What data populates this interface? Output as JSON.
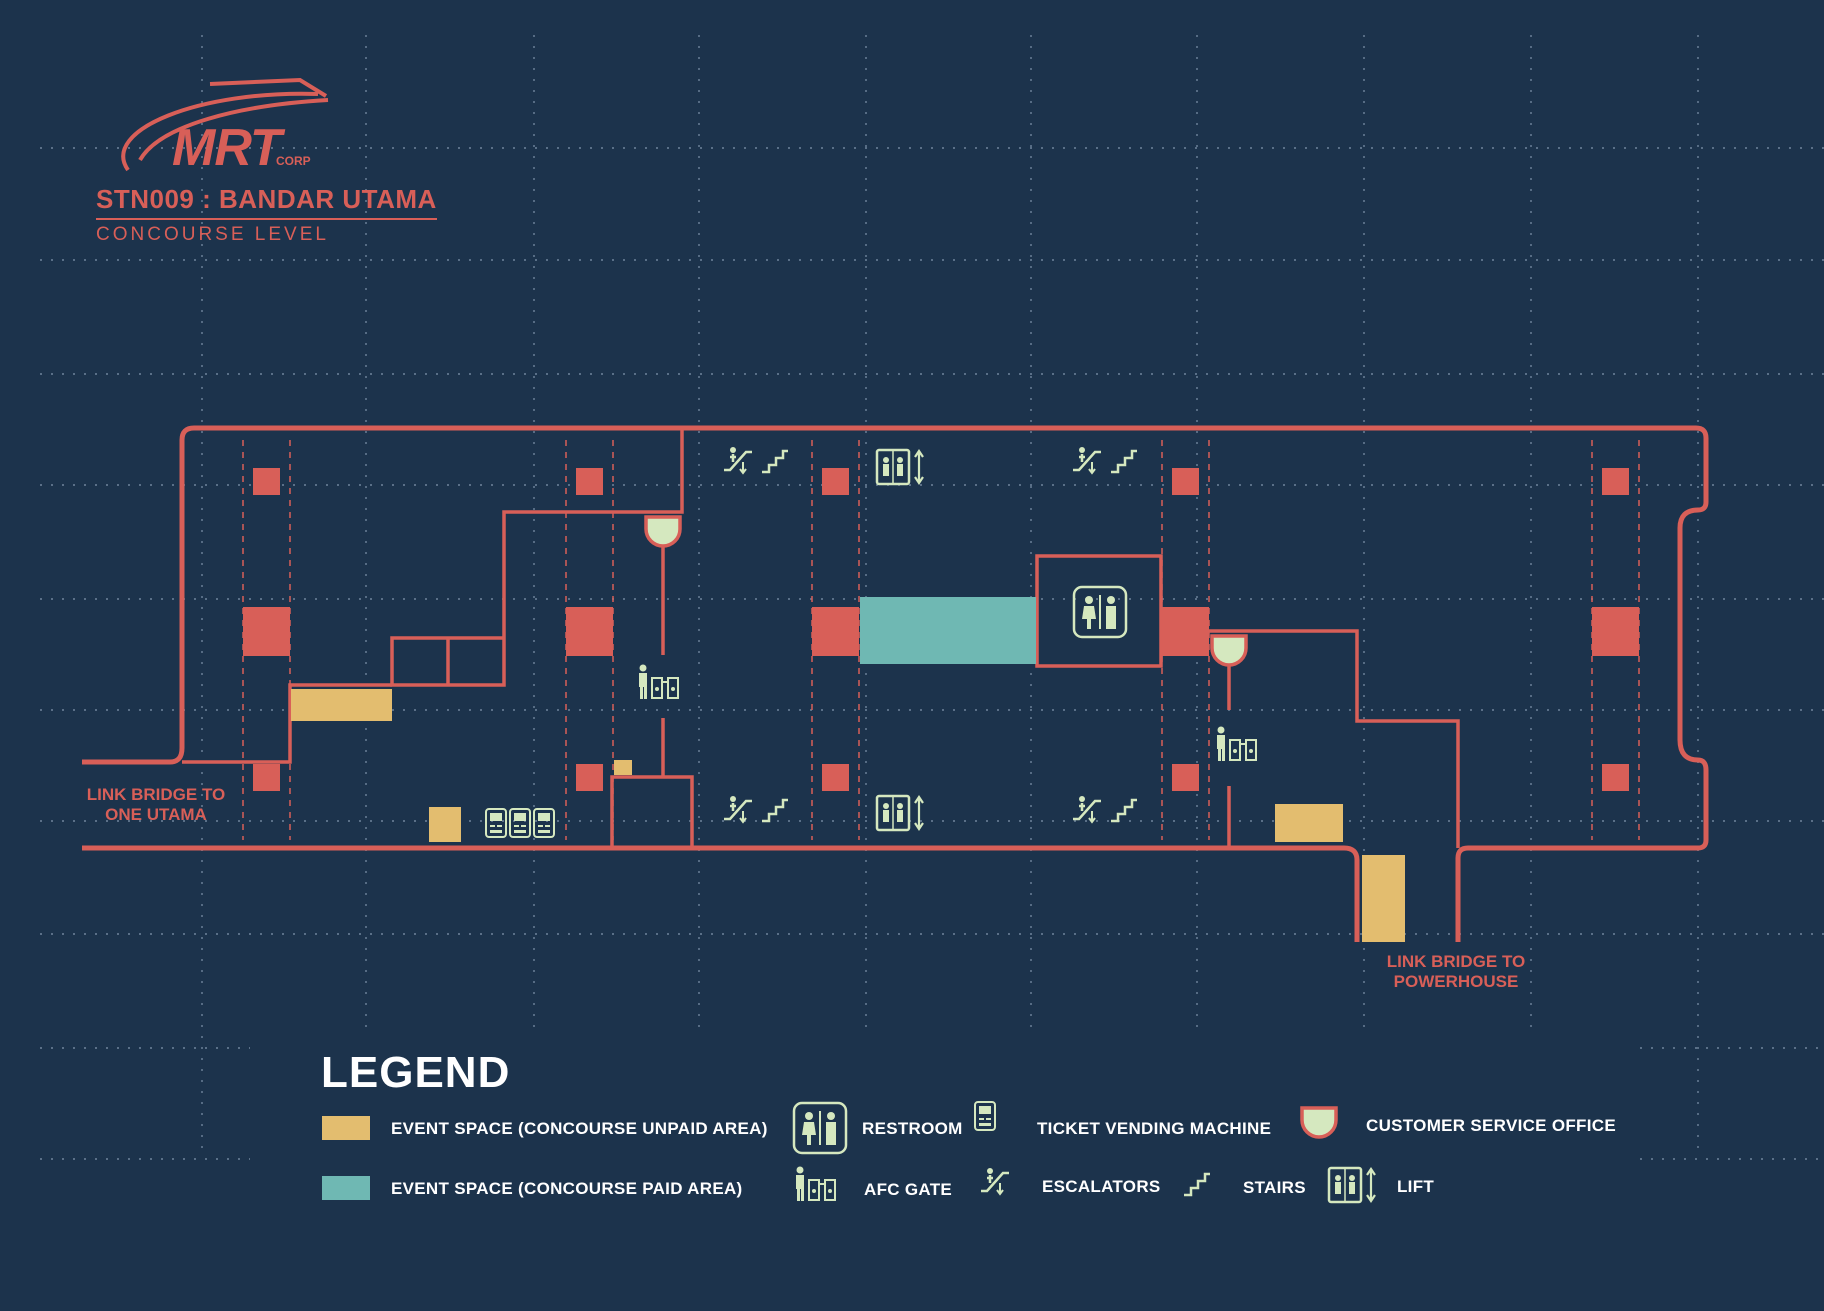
{
  "logo": {
    "wordmark": "MRT",
    "suffix": "CORP"
  },
  "station": {
    "title": "STN009 : BANDAR UTAMA",
    "level": "CONCOURSE LEVEL"
  },
  "links": {
    "west": [
      "LINK BRIDGE TO",
      "ONE UTAMA"
    ],
    "south": [
      "LINK BRIDGE TO",
      "POWERHOUSE"
    ]
  },
  "legend": {
    "title": "LEGEND",
    "items": {
      "unpaid": "EVENT SPACE (CONCOURSE UNPAID AREA)",
      "paid": "EVENT SPACE (CONCOURSE PAID AREA)",
      "restroom": "RESTROOM",
      "afc": "AFC GATE",
      "tvm": "TICKET VENDING MACHINE",
      "escalators": "ESCALATORS",
      "stairs": "STAIRS",
      "cso": "CUSTOMER SERVICE OFFICE",
      "lift": "LIFT"
    }
  },
  "colors": {
    "background": "#1c334c",
    "structure": "#d85f58",
    "unpaid_area": "#e3bd6f",
    "paid_area": "#6fb8b3",
    "icon": "#d5e8bf"
  },
  "icons": [
    "restroom-icon",
    "afc-gate-icon",
    "ticket-vending-machine-icon",
    "escalator-icon",
    "stairs-icon",
    "customer-service-office-icon",
    "lift-icon"
  ]
}
